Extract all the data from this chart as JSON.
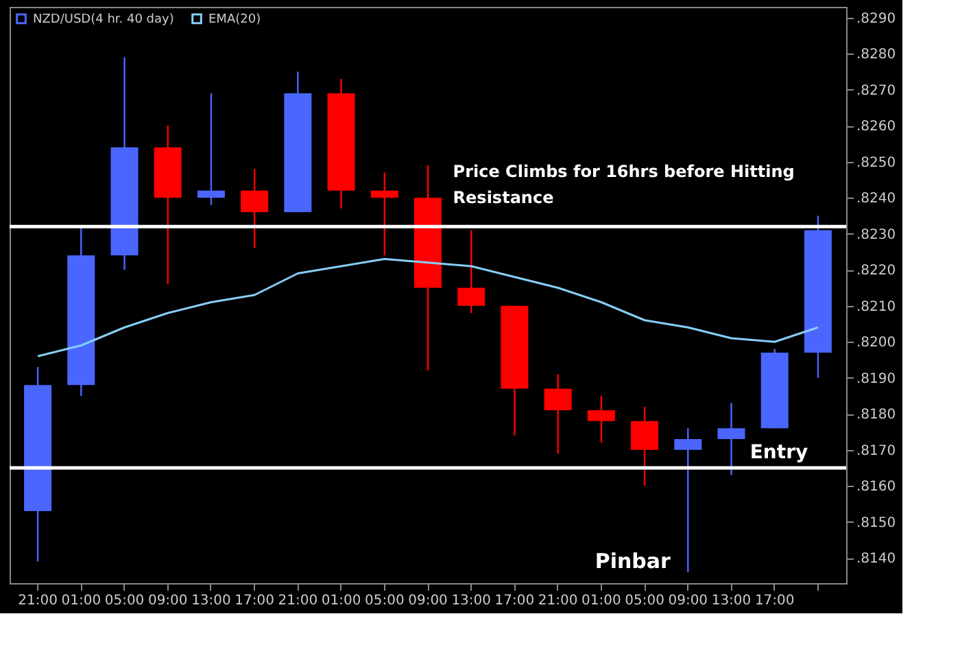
{
  "chart_data": {
    "type": "candlestick",
    "categories": [
      "21:00",
      "01:00",
      "05:00",
      "09:00",
      "13:00",
      "17:00",
      "21:00",
      "01:00",
      "05:00",
      "09:00",
      "13:00",
      "17:00",
      "21:00",
      "01:00",
      "05:00",
      "09:00",
      "13:00",
      "17:00",
      null
    ],
    "series": [
      {
        "name": "NZD/USD(4 hr. 40 day)",
        "color": "#4a66ff",
        "ohlc": [
          [
            0.8153,
            0.8193,
            0.8139,
            0.8188
          ],
          [
            0.8188,
            0.8232,
            0.8185,
            0.8224
          ],
          [
            0.8224,
            0.8279,
            0.822,
            0.8254
          ],
          [
            0.8254,
            0.826,
            0.8216,
            0.824
          ],
          [
            0.824,
            0.8269,
            0.8238,
            0.8242
          ],
          [
            0.8242,
            0.8248,
            0.8226,
            0.8236
          ],
          [
            0.8236,
            0.8275,
            0.8236,
            0.8269
          ],
          [
            0.8269,
            0.8273,
            0.8237,
            0.8242
          ],
          [
            0.8242,
            0.8247,
            0.8224,
            0.824
          ],
          [
            0.824,
            0.8249,
            0.8192,
            0.8215
          ],
          [
            0.8215,
            0.8231,
            0.8208,
            0.821
          ],
          [
            0.821,
            0.821,
            0.8174,
            0.8187
          ],
          [
            0.8187,
            0.8191,
            0.8169,
            0.8181
          ],
          [
            0.8181,
            0.8185,
            0.8172,
            0.8178
          ],
          [
            0.8178,
            0.8182,
            0.816,
            0.817
          ],
          [
            0.817,
            0.8176,
            0.8136,
            0.8173
          ],
          [
            0.8173,
            0.8183,
            0.8163,
            0.8176
          ],
          [
            0.8176,
            0.8198,
            0.8176,
            0.8197
          ],
          [
            0.8197,
            0.8235,
            0.819,
            0.8231
          ]
        ],
        "colors": [
          "#4a66ff",
          "#4a66ff",
          "#4a66ff",
          "#ff0000",
          "#4a66ff",
          "#ff0000",
          "#4a66ff",
          "#ff0000",
          "#ff0000",
          "#ff0000",
          "#ff0000",
          "#ff0000",
          "#ff0000",
          "#ff0000",
          "#ff0000",
          "#4a66ff",
          "#4a66ff",
          "#4a66ff",
          "#4a66ff"
        ]
      },
      {
        "name": "EMA(20)",
        "type": "line",
        "color": "#87cefa",
        "values": [
          0.8196,
          0.8199,
          0.8204,
          0.8208,
          0.8211,
          0.8213,
          0.8219,
          0.8221,
          0.8223,
          0.8222,
          0.8221,
          0.8218,
          0.8215,
          0.8211,
          0.8206,
          0.8204,
          0.8201,
          0.82,
          0.8204
        ]
      }
    ],
    "ylim": [
      0.8133,
      0.8293
    ],
    "yticks": [
      {
        "value": 0.814,
        "label": ".8140"
      },
      {
        "value": 0.815,
        "label": ".8150"
      },
      {
        "value": 0.816,
        "label": ".8160"
      },
      {
        "value": 0.817,
        "label": ".8170"
      },
      {
        "value": 0.818,
        "label": ".8180"
      },
      {
        "value": 0.819,
        "label": ".8190"
      },
      {
        "value": 0.82,
        "label": ".8200"
      },
      {
        "value": 0.821,
        "label": ".8210"
      },
      {
        "value": 0.822,
        "label": ".8220"
      },
      {
        "value": 0.823,
        "label": ".8230"
      },
      {
        "value": 0.824,
        "label": ".8240"
      },
      {
        "value": 0.825,
        "label": ".8250"
      },
      {
        "value": 0.826,
        "label": ".8260"
      },
      {
        "value": 0.827,
        "label": ".8270"
      },
      {
        "value": 0.828,
        "label": ".8280"
      },
      {
        "value": 0.829,
        "label": ".8290"
      }
    ],
    "ref_lines": [
      {
        "axis": "y",
        "value": 0.8232,
        "label": "Price Climbs for 16hrs before Hitting Resistance",
        "color": "#ffffff"
      },
      {
        "axis": "y",
        "value": 0.8165,
        "label": "Entry",
        "color": "#ffffff"
      }
    ],
    "annotations": [
      "Pinbar"
    ],
    "legend": "top left",
    "grid": false
  }
}
